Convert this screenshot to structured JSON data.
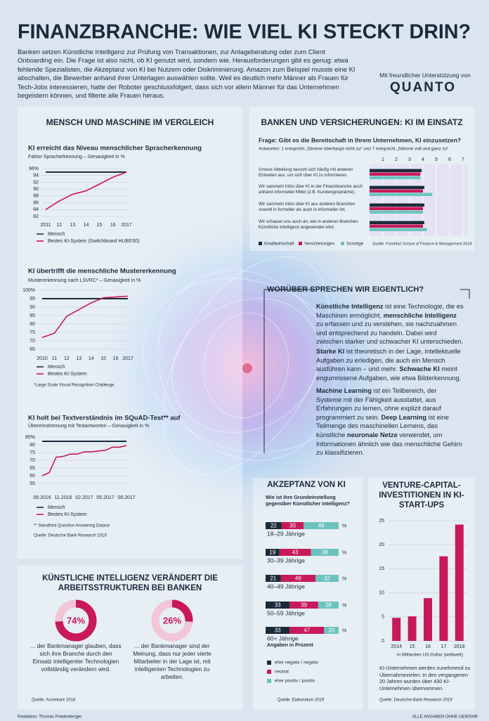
{
  "header": {
    "title": "FINANZBRANCHE: WIE VIEL KI STECKT DRIN?",
    "intro": "Banken setzen Künstliche Intelligenz zur Prüfung von Transaktionen, zur Anlageberatung oder zum Client Onboarding ein. Die Frage ist also nicht, ob KI genutzt wird, sondern wie. Herausforderungen gibt es genug: etwa fehlende Spezialisten, die Akzeptanz von KI bei Nutzern oder Diskriminierung. Amazon zum Beispiel musste eine KI abschalten, die Bewerber anhand ihrer Unterlagen auswählen sollte. Weil es deutlich mehr Männer als Frauen für Tech-Jobs interessieren, hatte der Roboter geschlussfolgert, dass sich vor allem Männer für das Unternehmen begeistern können, und filterte alle Frauen heraus.",
    "sponsor": "Mit freundlicher Unterstützung von",
    "logo": "QUANTO"
  },
  "sections": {
    "comparison": "MENSCH UND MASCHINE IM VERGLEICH",
    "banks": "BANKEN UND VERSICHERUNGEN: KI IM EINSATZ"
  },
  "glossary": {
    "title": "WORÜBER SPRECHEN WIR EIGENTLICH?",
    "paragraphs": [
      [
        {
          "b": "Künstliche Intelligenz"
        },
        {
          "t": " ist eine Technologie, die es Maschinen ermöglicht, "
        },
        {
          "b": "menschliche Intelligenz"
        },
        {
          "t": " zu erfassen und zu verstehen, sie nachzuahmen und entsprechend zu handeln. Dabei wird zwischen starker und schwacher KI unterschieden."
        }
      ],
      [
        {
          "b": "Starke KI"
        },
        {
          "t": " ist theoretisch in der Lage, intellektuelle Aufgaben zu erledigen, die auch ein Mensch ausführen kann – und mehr. "
        },
        {
          "b": "Schwache KI"
        },
        {
          "t": " meint engumrissene Aufgaben, wie etwa Bilderkennung."
        }
      ],
      [
        {
          "b": "Machine Learning"
        },
        {
          "t": " ist ein Teilbereich, der Systeme mit der Fähigkeit ausstattet, aus Erfahrungen zu lernen, ohne explizit darauf programmiert zu sein. "
        },
        {
          "b": "Deep Learning"
        },
        {
          "t": " ist eine Teilmenge des maschinellen Lernens, das künstliche "
        },
        {
          "b": "neuronale Netze"
        },
        {
          "t": " verwendet, um Informationen ähnlich wie das menschliche Gehirn zu klassifizieren."
        }
      ]
    ]
  },
  "chart_data": [
    {
      "type": "line",
      "title": "KI erreicht das Niveau menschlicher Spracherkennung",
      "subtitle": "Faktor Spracherkennung – Genauigkeit in %",
      "categories": [
        "2011",
        "12",
        "13",
        "14",
        "15",
        "16",
        "2017"
      ],
      "ylim": [
        82,
        96
      ],
      "yticks": [
        82,
        84,
        86,
        88,
        90,
        92,
        94,
        {
          "value": 96,
          "label": "96%"
        }
      ],
      "grid": true,
      "series": [
        {
          "name": "Mensch",
          "color": "#1b2a3a",
          "values": [
            95,
            95,
            95,
            95,
            95,
            95,
            95
          ]
        },
        {
          "name": "Bestes KI-System (Switchboard HUB5'00)",
          "color": "#c8195a",
          "values": [
            84,
            86.5,
            88.5,
            89.5,
            91.5,
            93.5,
            95
          ]
        }
      ]
    },
    {
      "type": "line",
      "title": "KI übertrifft die menschliche Mustererkennung",
      "subtitle": "Mustererkennung nach LSVRC* – Genauigkeit in %",
      "categories": [
        "2010",
        "11",
        "12",
        "13",
        "14",
        "15",
        "16",
        "2017"
      ],
      "ylim": [
        65,
        100
      ],
      "yticks": [
        65,
        70,
        75,
        80,
        85,
        90,
        95,
        {
          "value": 100,
          "label": "100%"
        }
      ],
      "grid": true,
      "series": [
        {
          "name": "Mensch",
          "color": "#1b2a3a",
          "values": [
            95,
            95,
            95,
            95,
            95,
            95,
            95,
            95
          ]
        },
        {
          "name": "Bestes KI-System",
          "color": "#c8195a",
          "values": [
            72,
            74.5,
            84.5,
            88.5,
            92.5,
            95.5,
            96,
            96.5
          ]
        }
      ],
      "note": "*Large Scale Visual Recognition Challenge"
    },
    {
      "type": "line",
      "title": "KI holt bei Textverständnis im SQuAD-Test** auf",
      "subtitle": "Übereinstimmung mit Testantworten – Genauigkeit in %",
      "categories": [
        "08.2016",
        null,
        null,
        "11.2016",
        null,
        null,
        "02.2017",
        null,
        null,
        "05.2017",
        null,
        null,
        "08.2017"
      ],
      "ylim": [
        55,
        85
      ],
      "yticks": [
        55,
        60,
        65,
        70,
        75,
        80,
        {
          "value": 85,
          "label": "85%"
        }
      ],
      "grid": true,
      "series": [
        {
          "name": "Mensch",
          "color": "#1b2a3a",
          "values": [
            82.3,
            82.3,
            82.3,
            82.3,
            82.3,
            82.3,
            82.3,
            82.3,
            82.3,
            82.3,
            82.3,
            82.3,
            82.3
          ]
        },
        {
          "name": "Bestes KI-System",
          "color": "#c8195a",
          "values": [
            60,
            62,
            72,
            72.5,
            74,
            74,
            75.5,
            75.5,
            76,
            76.5,
            78.5,
            78.5,
            79.5
          ]
        }
      ],
      "note": "** Standford Question Answering Datase",
      "source": "Quelle: Deutsche Bank Research 2019"
    },
    {
      "type": "hbar",
      "title": "Frage: Gibt es die Bereitschaft in Ihrem Unternehmen, KI einzusetzen?",
      "subtitle": "Antworten: 1 entspricht „Stimme überhaupt nicht zu“ und 7 entspricht „Stimme voll und ganz zu“",
      "categories": [
        "Unsere Abteilung tauscht sich häufig mit anderen Einheiten aus, um sich über KI zu informieren.",
        "Wir sammeln Infos über KI in der Finanzbranche auch anhand informeller Mittel (z.B. Kundengespräche).",
        "Wir sammeln Infos über KI aus anderen Branchen sowohl in formeller als auch in informeller Art.",
        "Wir schauen uns auch an, wie in anderen Branchen Künstliche Intelligenz angewendet wird."
      ],
      "xlim": [
        0,
        7
      ],
      "xticks": [
        1,
        2,
        3,
        4,
        5,
        6,
        7
      ],
      "grid": true,
      "series": [
        {
          "name": "Kreditwirtschaft",
          "color": "#1b2a3a",
          "values": [
            3.9,
            4.1,
            4.1,
            4.1
          ]
        },
        {
          "name": "Versicherungen",
          "color": "#c8195a",
          "values": [
            3.8,
            4.0,
            4.0,
            4.0
          ]
        },
        {
          "name": "Sonstige",
          "color": "#6cc3be",
          "values": [
            3.8,
            4.7,
            4.0,
            4.3
          ]
        }
      ],
      "source": "Quelle: Frankfurt School of Finance & Management 2018"
    },
    {
      "type": "donut",
      "title": "KÜNSTLICHE INTELLIGENZ VERÄNDERT DIE ARBEITSSTRUKTUREN BEI BANKEN",
      "values": [
        74,
        26
      ],
      "value_labels": [
        "74%",
        "26%"
      ],
      "captions": [
        "... der Bankmanager glauben, dass sich ihre Branche durch den Einsatz intelligenter Technologien vollständig verändern wird.",
        "... der Bankmanager sind der Meinung, dass nur jeder vierte Mitarbeiter in der Lage ist, mit intelligenten Technologien zu arbeiten."
      ],
      "color": "#c8195a",
      "source": "Quelle: Accenture 2018"
    },
    {
      "type": "stacked_hbar",
      "title": "AKZEPTANZ VON KI",
      "subtitle": "Wie ist Ihre Grundeinstellung gegenüber Künstlicher Intelligenz?",
      "categories": [
        "18–29 Jährige",
        "30–39 Jährige",
        "40–49 Jährige",
        "50–59 Jährige",
        "60+ Jährige"
      ],
      "unit": "%",
      "series": [
        {
          "name": "eher negativ / negativ",
          "color": "#1b2a3a",
          "values": [
            22,
            19,
            21,
            33,
            33
          ]
        },
        {
          "name": "neutral",
          "color": "#c8195a",
          "values": [
            30,
            43,
            48,
            39,
            47
          ]
        },
        {
          "name": "eher positiv / positiv",
          "color": "#6cc3be",
          "values": [
            48,
            38,
            32,
            28,
            20
          ]
        }
      ],
      "note": "Angaben in Prozent",
      "source": "Quelle: Elaboratum 2019"
    },
    {
      "type": "bar",
      "title": "VENTURE-CAPITAL-INVESTITIONEN IN KI-START-UPS",
      "categories": [
        "2014",
        "15",
        "16",
        "17",
        "2018"
      ],
      "values": [
        4.8,
        5.1,
        8.9,
        17.6,
        24.2
      ],
      "color": "#c8195a",
      "ylim": [
        0,
        25
      ],
      "yticks": [
        0,
        5,
        10,
        15,
        20,
        25
      ],
      "grid": true,
      "ylabel": "in Milliarden US-Dollar (weltweit)",
      "note": "KI-Unternehmen werden zunehmend zu Übernahmezielen: In den vergangenen 20 Jahren wurden über 430 KI-Unternehmen übernommen.",
      "source": "Quelle: Deutsche Bank Research 2019"
    }
  ],
  "footer": {
    "editor": "Redaktion: Thomas Friedenberger",
    "disclaimer": "ALLE ANGABEN OHNE GEWÄHR"
  }
}
